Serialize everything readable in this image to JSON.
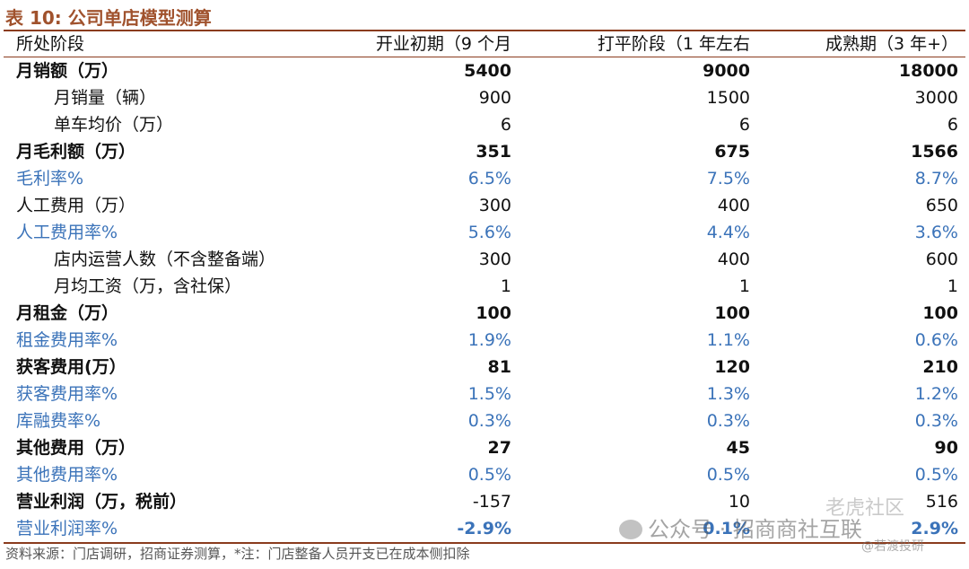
{
  "title": "表 10:  公司单店模型测算",
  "header": {
    "stage": "所处阶段",
    "col1": "开业初期（9 个月",
    "col2": "打平阶段（1 年左右",
    "col3": "成熟期（3 年+）"
  },
  "rows": [
    {
      "label": "月销额（万）",
      "v1": "5400",
      "v2": "9000",
      "v3": "18000"
    },
    {
      "label": "月销量（辆）",
      "v1": "900",
      "v2": "1500",
      "v3": "3000"
    },
    {
      "label": "单车均价（万）",
      "v1": "6",
      "v2": "6",
      "v3": "6"
    },
    {
      "label": "月毛利额（万）",
      "v1": "351",
      "v2": "675",
      "v3": "1566"
    },
    {
      "label": "毛利率%",
      "v1": "6.5%",
      "v2": "7.5%",
      "v3": "8.7%"
    },
    {
      "label": "人工费用（万）",
      "v1": "300",
      "v2": "400",
      "v3": "650"
    },
    {
      "label": "人工费用率%",
      "v1": "5.6%",
      "v2": "4.4%",
      "v3": "3.6%"
    },
    {
      "label": "店内运营人数（不含整备端）",
      "v1": "300",
      "v2": "400",
      "v3": "600"
    },
    {
      "label": "月均工资（万，含社保）",
      "v1": "1",
      "v2": "1",
      "v3": "1"
    },
    {
      "label": "月租金（万）",
      "v1": "100",
      "v2": "100",
      "v3": "100"
    },
    {
      "label": "租金费用率%",
      "v1": "1.9%",
      "v2": "1.1%",
      "v3": "0.6%"
    },
    {
      "label": "获客费用(万）",
      "v1": "81",
      "v2": "120",
      "v3": "210"
    },
    {
      "label": "获客费用率%",
      "v1": "1.5%",
      "v2": "1.3%",
      "v3": "1.2%"
    },
    {
      "label": "库融费率%",
      "v1": "0.3%",
      "v2": "0.3%",
      "v3": "0.3%"
    },
    {
      "label": "其他费用（万）",
      "v1": "27",
      "v2": "45",
      "v3": "90"
    },
    {
      "label": "其他费用率%",
      "v1": "0.5%",
      "v2": "0.5%",
      "v3": "0.5%"
    },
    {
      "label": "营业利润（万，税前）",
      "v1": "-157",
      "v2": "10",
      "v3": "516"
    },
    {
      "label": "营业利润率%",
      "v1": "-2.9%",
      "v2": "0.1%",
      "v3": "2.9%"
    }
  ],
  "source": "资料来源：门店调研，招商证券测算，*注：门店整备人员开支已在成本侧扣除",
  "watermark": {
    "main": "公众号 · 招商商社互联",
    "secondary": "老虎社区",
    "tertiary": "@若渡投研"
  }
}
